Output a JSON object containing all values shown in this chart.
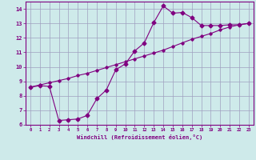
{
  "xlabel": "Windchill (Refroidissement éolien,°C)",
  "bg_color": "#ceeaea",
  "line_color": "#800080",
  "grid_color": "#a0a0c0",
  "line1_x": [
    0,
    1,
    2,
    3,
    4,
    5,
    6,
    7,
    8,
    9,
    10,
    11,
    12,
    13,
    14,
    15,
    16,
    17,
    18,
    19,
    20,
    21,
    22,
    23
  ],
  "line1_y": [
    8.6,
    8.75,
    8.9,
    9.05,
    9.2,
    9.4,
    9.55,
    9.75,
    9.95,
    10.15,
    10.35,
    10.55,
    10.75,
    10.95,
    11.15,
    11.4,
    11.65,
    11.9,
    12.1,
    12.3,
    12.55,
    12.75,
    12.9,
    13.0
  ],
  "line2_x": [
    0,
    1,
    2,
    3,
    4,
    5,
    6,
    7,
    8,
    9,
    10,
    11,
    12,
    13,
    14,
    15,
    16,
    17,
    18,
    19,
    20,
    21,
    22,
    23
  ],
  "line2_y": [
    8.6,
    8.7,
    8.65,
    6.3,
    6.35,
    6.4,
    6.65,
    7.8,
    8.4,
    9.8,
    10.2,
    11.1,
    11.65,
    13.05,
    14.2,
    13.7,
    13.75,
    13.4,
    12.85,
    12.85,
    12.85,
    12.9,
    12.9,
    13.0
  ],
  "xlim": [
    -0.5,
    23.5
  ],
  "ylim": [
    6,
    14.5
  ],
  "yticks": [
    6,
    7,
    8,
    9,
    10,
    11,
    12,
    13,
    14
  ],
  "xticks": [
    0,
    1,
    2,
    3,
    4,
    5,
    6,
    7,
    8,
    9,
    10,
    11,
    12,
    13,
    14,
    15,
    16,
    17,
    18,
    19,
    20,
    21,
    22,
    23
  ]
}
